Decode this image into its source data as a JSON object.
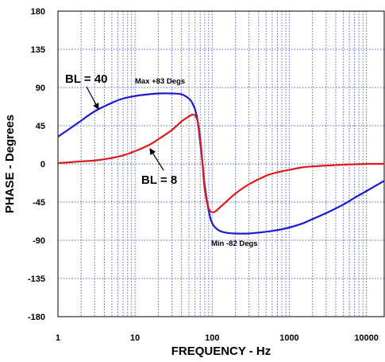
{
  "chart_data": {
    "type": "line",
    "title": "",
    "xlabel": "FREQUENCY - Hz",
    "ylabel": "PHASE - Degrees",
    "x_scale": "log",
    "xlim": [
      1,
      17000
    ],
    "ylim": [
      -180,
      180
    ],
    "x_ticks": [
      {
        "value": 1,
        "label": "1"
      },
      {
        "value": 10,
        "label": "10"
      },
      {
        "value": 100,
        "label": "100"
      },
      {
        "value": 1000,
        "label": "1000"
      },
      {
        "value": 10000,
        "label": "10000"
      }
    ],
    "y_ticks": [
      {
        "value": 180,
        "label": "180"
      },
      {
        "value": 135,
        "label": "135"
      },
      {
        "value": 90,
        "label": "90"
      },
      {
        "value": 45,
        "label": "45"
      },
      {
        "value": 0,
        "label": "0"
      },
      {
        "value": -45,
        "label": "-45"
      },
      {
        "value": -90,
        "label": "-90"
      },
      {
        "value": -135,
        "label": "-135"
      },
      {
        "value": -180,
        "label": "-180"
      }
    ],
    "grid": true,
    "grid_style": "dotted",
    "colors": {
      "blue_curve": "#1a1ad4",
      "red_curve": "#e01a1a",
      "grid": "#5566dd",
      "axes": "#000000"
    },
    "series": [
      {
        "name": "BL = 40",
        "color": "#1a1ad4",
        "x": [
          1,
          1.5,
          2,
          3,
          5,
          7,
          10,
          15,
          20,
          30,
          40,
          50,
          55,
          60,
          65,
          70,
          75,
          80,
          90,
          100,
          120,
          150,
          200,
          300,
          500,
          700,
          1000,
          1500,
          2000,
          3000,
          5000,
          7000,
          10000,
          17000
        ],
        "y": [
          32,
          43,
          51,
          62,
          72,
          77,
          80,
          82,
          83,
          83,
          82,
          77,
          72,
          64,
          50,
          25,
          0,
          -25,
          -55,
          -70,
          -78,
          -81,
          -82,
          -82,
          -80,
          -78,
          -75,
          -70,
          -65,
          -58,
          -48,
          -40,
          -32,
          -20
        ]
      },
      {
        "name": "BL = 8",
        "color": "#e01a1a",
        "x": [
          1,
          1.5,
          2,
          3,
          5,
          7,
          10,
          15,
          20,
          30,
          40,
          50,
          55,
          60,
          65,
          70,
          75,
          80,
          90,
          100,
          110,
          120,
          150,
          200,
          300,
          500,
          700,
          1000,
          1500,
          2000,
          3000,
          5000,
          10000,
          17000
        ],
        "y": [
          1,
          2,
          3,
          4,
          7,
          10,
          15,
          22,
          29,
          40,
          50,
          56,
          58,
          57,
          50,
          30,
          0,
          -30,
          -52,
          -57,
          -56,
          -53,
          -45,
          -35,
          -24,
          -14,
          -10,
          -7,
          -4,
          -3,
          -2,
          -1,
          0,
          0
        ]
      }
    ],
    "annotations": [
      {
        "text": "BL = 40",
        "size": "large",
        "points_to_series": "BL = 40"
      },
      {
        "text": "BL = 8",
        "size": "large",
        "points_to_series": "BL = 8"
      },
      {
        "text": "Max +83 Degs",
        "size": "small"
      },
      {
        "text": "Min -82 Degs",
        "size": "small"
      }
    ],
    "legend": "none (curves labeled with arrows)"
  }
}
